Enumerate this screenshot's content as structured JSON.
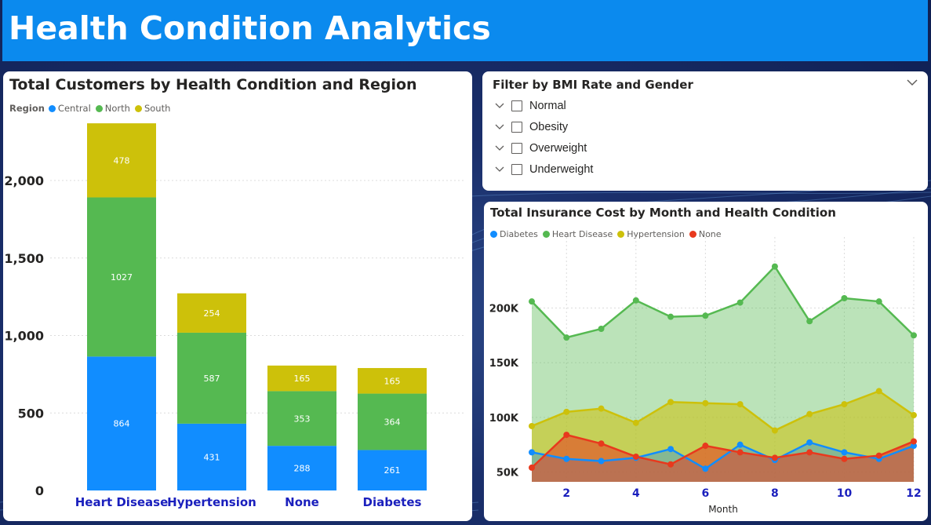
{
  "header": {
    "title": "Health Condition Analytics"
  },
  "colors": {
    "header_bg": "#0b8aee",
    "central": "#118dff",
    "north": "#55b951",
    "south": "#cdc10a",
    "diabetes": "#118dff",
    "heart_disease": "#55b951",
    "hypertension": "#cdc10a",
    "none": "#e8391d",
    "category_label": "#1a1fbd"
  },
  "filter": {
    "title": "Filter by BMI Rate and Gender",
    "items": [
      {
        "label": "Normal"
      },
      {
        "label": "Obesity"
      },
      {
        "label": "Overweight"
      },
      {
        "label": "Underweight"
      }
    ]
  },
  "chart_data": [
    {
      "type": "bar",
      "stacked": true,
      "title": "Total Customers by Health Condition and Region",
      "legend_title": "Region",
      "legend_position": "top-left",
      "categories": [
        "Heart Disease",
        "Hypertension",
        "None",
        "Diabetes"
      ],
      "series": [
        {
          "name": "Central",
          "values": [
            864,
            431,
            288,
            261
          ]
        },
        {
          "name": "North",
          "values": [
            1027,
            587,
            353,
            364
          ]
        },
        {
          "name": "South",
          "values": [
            478,
            254,
            165,
            165
          ]
        }
      ],
      "yticks": [
        "0",
        "500",
        "1,000",
        "1,500",
        "2,000"
      ],
      "ylim": [
        0,
        2400
      ],
      "grid": true
    },
    {
      "type": "area",
      "title": "Total Insurance Cost by Month and Health Condition",
      "legend_position": "top-left",
      "xlabel": "Month",
      "x": [
        1,
        2,
        3,
        4,
        5,
        6,
        7,
        8,
        9,
        10,
        11,
        12
      ],
      "xticks": [
        "2",
        "4",
        "6",
        "8",
        "10",
        "12"
      ],
      "yticks": [
        "50K",
        "100K",
        "150K",
        "200K"
      ],
      "ylim": [
        41000,
        265000
      ],
      "grid": true,
      "series": [
        {
          "name": "Diabetes",
          "values": [
            68000,
            62000,
            60000,
            63000,
            71000,
            53000,
            75000,
            61000,
            77000,
            68000,
            62000,
            74000
          ]
        },
        {
          "name": "Heart Disease",
          "values": [
            206000,
            173000,
            181000,
            207000,
            192000,
            193000,
            205000,
            238000,
            188000,
            209000,
            206000,
            175000
          ]
        },
        {
          "name": "Hypertension",
          "values": [
            92000,
            105000,
            108000,
            95000,
            114000,
            113000,
            112000,
            88000,
            103000,
            112000,
            124000,
            102000
          ]
        },
        {
          "name": "None",
          "values": [
            54000,
            84000,
            76000,
            64000,
            57000,
            74000,
            68000,
            63000,
            68000,
            62000,
            65000,
            78000
          ]
        }
      ]
    }
  ]
}
